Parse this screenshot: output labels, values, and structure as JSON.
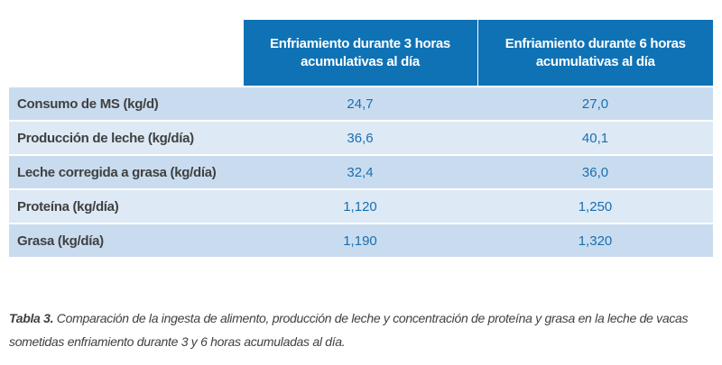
{
  "table": {
    "headers": [
      "",
      "Enfriamiento durante 3 horas acumulativas al día",
      "Enfriamiento durante 6 horas acumulativas al día"
    ],
    "rows": [
      {
        "label": "Consumo de MS (kg/d)",
        "v3": "24,7",
        "v6": "27,0"
      },
      {
        "label": "Producción de leche (kg/día)",
        "v3": "36,6",
        "v6": "40,1"
      },
      {
        "label": "Leche corregida a grasa (kg/día)",
        "v3": "32,4",
        "v6": "36,0"
      },
      {
        "label": "Proteína (kg/día)",
        "v3": "1,120",
        "v6": "1,250"
      },
      {
        "label": "Grasa (kg/día)",
        "v3": "1,190",
        "v6": "1,320"
      }
    ]
  },
  "caption": {
    "lead": "Tabla 3.",
    "text": " Comparación de la ingesta de alimento, producción de leche y concentración de proteína y grasa en la leche de vacas sometidas enfriamiento durante 3 y 6 horas acumuladas al día."
  },
  "colors": {
    "header_blue": "#0f72b5",
    "row_dark": "#c9dcef",
    "row_light": "#dde9f5",
    "value_text": "#1a6eaf",
    "label_text": "#404040"
  }
}
